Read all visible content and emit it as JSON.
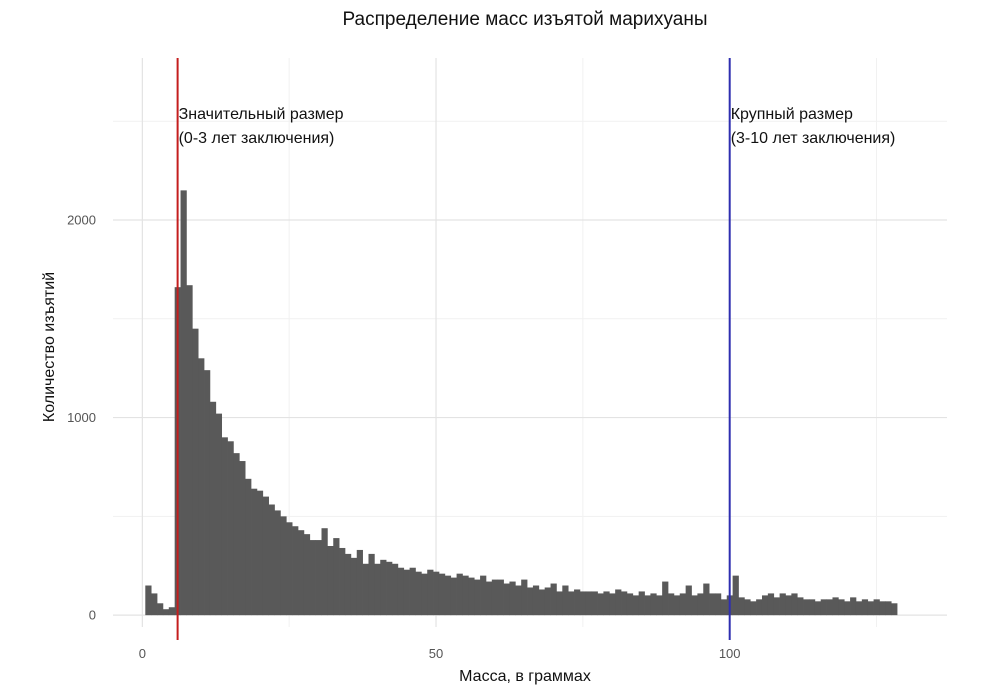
{
  "chart_data": {
    "type": "bar",
    "title": "Распределение масс изъятой марихуаны",
    "xlabel": "Масса, в граммах",
    "ylabel": "Количество изъятий",
    "xlim": [
      -5,
      137
    ],
    "ylim": [
      -60,
      2820
    ],
    "x_ticks": [
      0,
      50,
      100
    ],
    "y_ticks": [
      0,
      1000,
      2000
    ],
    "grid": true,
    "bin_width": 1,
    "bins_start": 0.5,
    "values": [
      150,
      110,
      60,
      30,
      40,
      1660,
      2150,
      1670,
      1450,
      1300,
      1240,
      1080,
      1020,
      900,
      880,
      820,
      780,
      690,
      640,
      630,
      600,
      560,
      530,
      500,
      470,
      450,
      430,
      410,
      380,
      380,
      440,
      350,
      390,
      340,
      310,
      290,
      330,
      260,
      310,
      260,
      280,
      270,
      260,
      240,
      230,
      240,
      220,
      210,
      230,
      220,
      210,
      200,
      190,
      210,
      200,
      190,
      180,
      200,
      170,
      180,
      180,
      160,
      170,
      150,
      180,
      140,
      150,
      130,
      140,
      160,
      120,
      150,
      120,
      130,
      120,
      120,
      120,
      110,
      120,
      110,
      130,
      120,
      110,
      100,
      120,
      100,
      110,
      100,
      170,
      110,
      100,
      110,
      150,
      100,
      110,
      160,
      110,
      110,
      80,
      100,
      200,
      90,
      80,
      70,
      80,
      100,
      110,
      90,
      110,
      100,
      110,
      90,
      80,
      80,
      70,
      80,
      80,
      90,
      80,
      70,
      90,
      70,
      80,
      70,
      80,
      70,
      70,
      60
    ],
    "vlines": [
      {
        "x": 6,
        "color": "#c41e1e",
        "label_line1": "Значительный размер",
        "label_line2": "(0-3 лет заключения)"
      },
      {
        "x": 100,
        "color": "#2e2eb0",
        "label_line1": "Крупный размер",
        "label_line2": "(3-10 лет заключения)"
      }
    ]
  }
}
